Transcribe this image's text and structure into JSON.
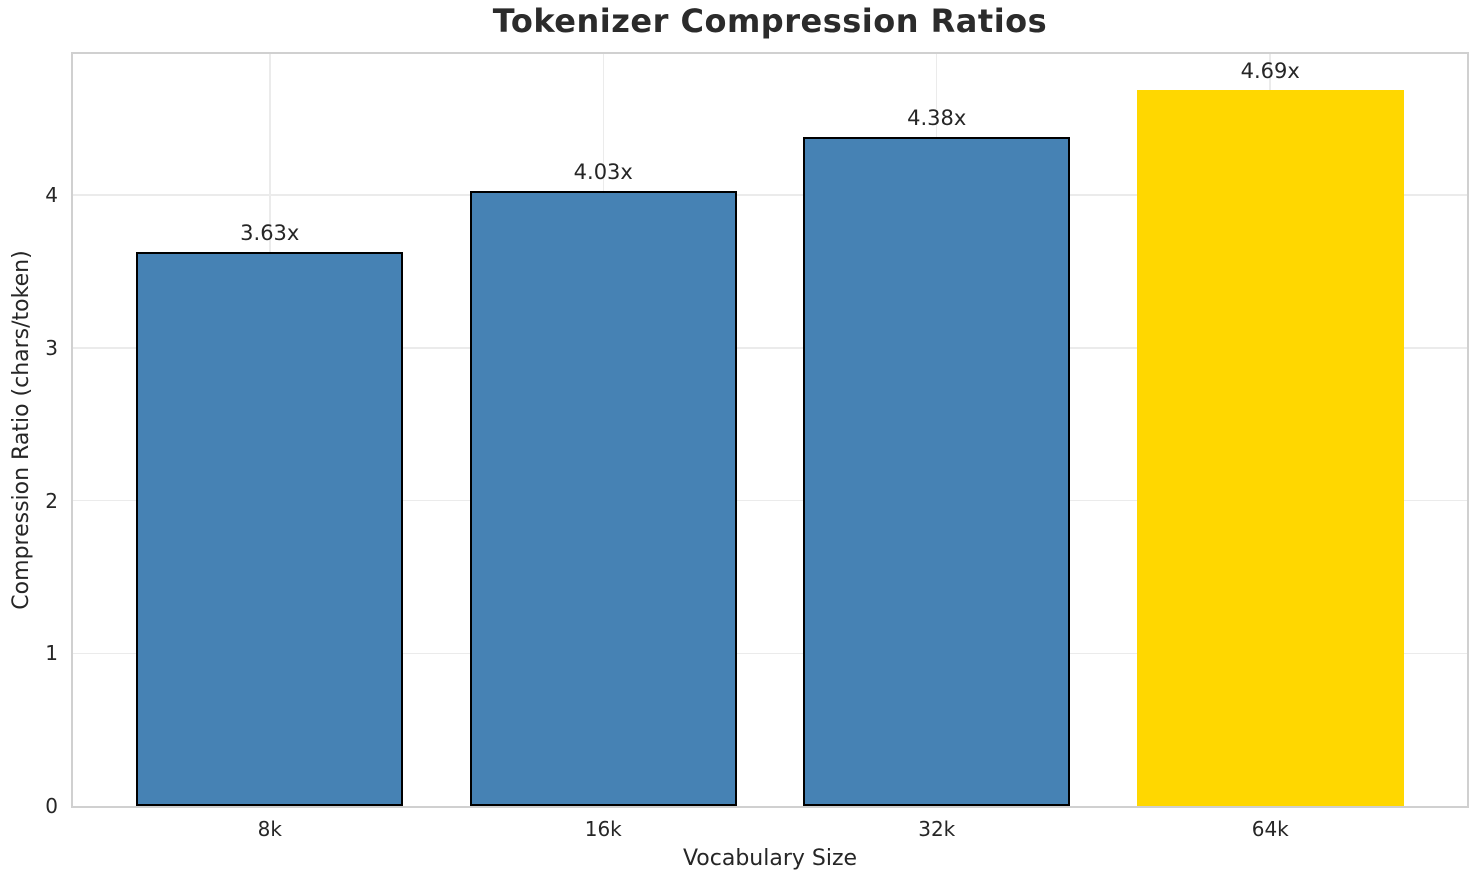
{
  "chart_data": {
    "type": "bar",
    "title": "Tokenizer Compression Ratios",
    "xlabel": "Vocabulary Size",
    "ylabel": "Compression Ratio (chars/token)",
    "categories": [
      "8k",
      "16k",
      "32k",
      "64k"
    ],
    "values": [
      3.63,
      4.03,
      4.38,
      4.69
    ],
    "bar_labels": [
      "3.63x",
      "4.03x",
      "4.38x",
      "4.69x"
    ],
    "bar_colors": [
      "#4682b4",
      "#4682b4",
      "#4682b4",
      "#ffd700"
    ],
    "bar_edge_colors": [
      "#000000",
      "#000000",
      "#000000",
      "none"
    ],
    "bar_width": 0.8,
    "xlim": [
      -0.59,
      3.59
    ],
    "ylim": [
      0,
      4.9245
    ],
    "yticks": [
      0,
      1,
      2,
      3,
      4
    ],
    "grid": true,
    "legend": "none",
    "colors": {
      "bar_default": "#4682b4",
      "bar_highlight": "#ffd700",
      "bar_edge": "#000000",
      "grid": "#ebebeb",
      "spine": "#d0d0d0",
      "text": "#262626"
    }
  }
}
